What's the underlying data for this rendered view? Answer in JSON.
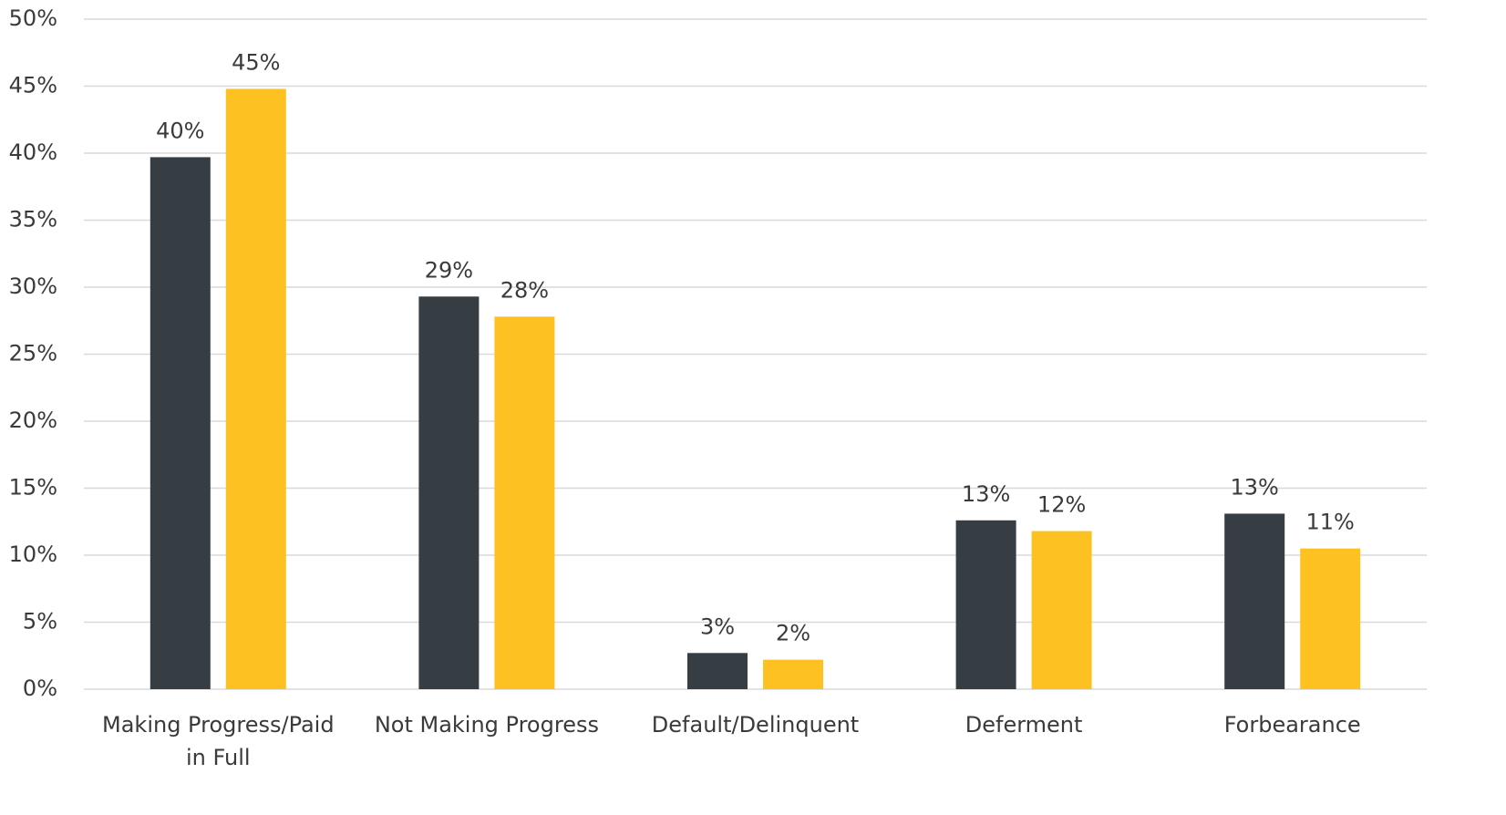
{
  "chart_data": {
    "type": "bar",
    "categories": [
      "Making Progress/Paid in Full",
      "Not Making Progress",
      "Default/Delinquent",
      "Deferment",
      "Forbearance"
    ],
    "series": [
      {
        "color": "#363d43",
        "values": [
          39.7,
          29.3,
          2.7,
          12.6,
          13.1
        ],
        "value_labels": [
          "40%",
          "29%",
          "3%",
          "13%",
          "13%"
        ]
      },
      {
        "color": "#fdc121",
        "values": [
          44.8,
          27.8,
          2.2,
          11.8,
          10.5
        ],
        "value_labels": [
          "45%",
          "28%",
          "2%",
          "12%",
          "11%"
        ]
      }
    ],
    "ylim": [
      0,
      50
    ],
    "yticks": [
      {
        "value": 0,
        "label": "0%"
      },
      {
        "value": 5,
        "label": "5%"
      },
      {
        "value": 10,
        "label": "10%"
      },
      {
        "value": 15,
        "label": "15%"
      },
      {
        "value": 20,
        "label": "20%"
      },
      {
        "value": 25,
        "label": "25%"
      },
      {
        "value": 30,
        "label": "30%"
      },
      {
        "value": 35,
        "label": "35%"
      },
      {
        "value": 40,
        "label": "40%"
      },
      {
        "value": 45,
        "label": "45%"
      },
      {
        "value": 50,
        "label": "50%"
      }
    ],
    "grid": true
  }
}
